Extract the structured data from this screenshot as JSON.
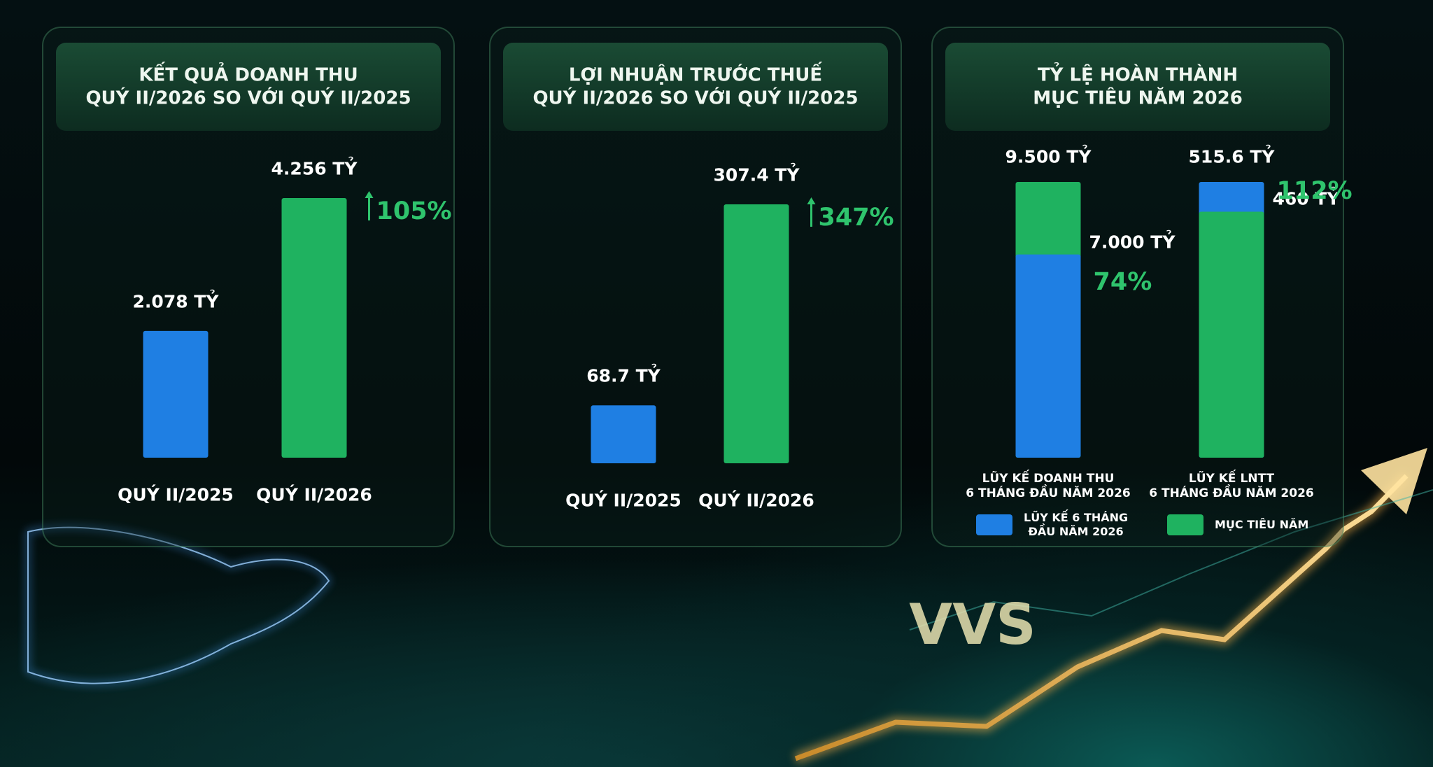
{
  "brand": "VVS",
  "chart_data": [
    {
      "type": "bar",
      "title": "KẾT QUẢ DOANH THU\nQUÝ II/2026 SO VỚI QUÝ II/2025",
      "categories": [
        "QUÝ II/2025",
        "QUÝ II/2026"
      ],
      "values": [
        2078,
        4256
      ],
      "value_labels": [
        "2.078 TỶ",
        "4.256 TỶ"
      ],
      "colors": [
        "#1f7fe3",
        "#1fb260"
      ],
      "annotation": "105%"
    },
    {
      "type": "bar",
      "title": "LỢI NHUẬN TRƯỚC THUẾ\nQUÝ II/2026 SO VỚI QUÝ II/2025",
      "categories": [
        "QUÝ II/2025",
        "QUÝ II/2026"
      ],
      "values": [
        68.7,
        307.4
      ],
      "value_labels": [
        "68.7 TỶ",
        "307.4 TỶ"
      ],
      "colors": [
        "#1f7fe3",
        "#1fb260"
      ],
      "annotation": "347%"
    },
    {
      "type": "bar",
      "title": "TỶ LỆ HOÀN THÀNH\nMỤC TIÊU NĂM 2026",
      "categories": [
        "LŨY KẾ DOANH THU\n6 THÁNG ĐẦU NĂM 2026",
        "LŨY KẾ LNTT\n6 THÁNG ĐẦU NĂM 2026"
      ],
      "series": [
        {
          "name": "LŨY KẾ 6 THÁNG\nĐẦU NĂM 2026",
          "color": "#1f7fe3",
          "values": [
            7000,
            515.6
          ],
          "value_labels": [
            "7.000 TỶ",
            "515.6 TỶ"
          ]
        },
        {
          "name": "MỤC TIÊU NĂM",
          "color": "#1fb260",
          "values": [
            9500,
            460
          ],
          "value_labels": [
            "9.500 TỶ",
            "460 TỶ"
          ]
        }
      ],
      "annotations": [
        "74%",
        "112%"
      ]
    }
  ]
}
